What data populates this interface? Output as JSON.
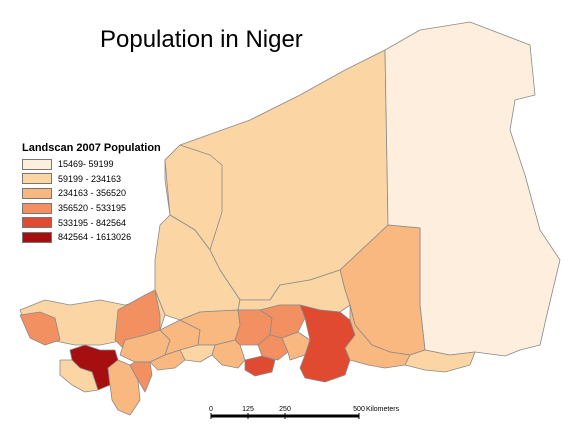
{
  "title": "Population in Niger",
  "legend": {
    "title": "Landscan 2007 Population",
    "classes": [
      {
        "label": "15469- 59199",
        "color": "#fdeedd"
      },
      {
        "label": "59199 - 234163",
        "color": "#fbd6a4"
      },
      {
        "label": "234163 - 356520",
        "color": "#f8b87f"
      },
      {
        "label": "356520 - 533195",
        "color": "#f39062"
      },
      {
        "label": "533195 - 842564",
        "color": "#e04a30"
      },
      {
        "label": "842564 - 1613026",
        "color": "#a50f0f"
      }
    ]
  },
  "scale_bar": {
    "ticks": [
      "0",
      "125",
      "250",
      "500"
    ],
    "unit": "Kilometers"
  },
  "colors": {
    "border": "#8a8a8a"
  }
}
